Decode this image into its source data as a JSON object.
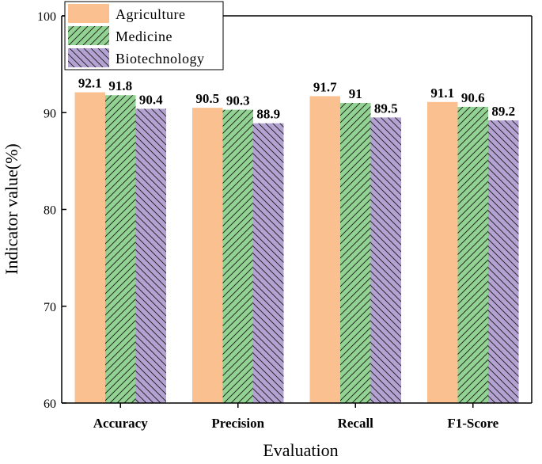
{
  "chart_data": {
    "type": "bar",
    "title": "",
    "xlabel": "Evaluation",
    "ylabel": "Indicator value(%)",
    "ylim": [
      60,
      100
    ],
    "yticks": [
      "60",
      "70",
      "80",
      "90",
      "100"
    ],
    "categories": [
      "Accuracy",
      "Precision",
      "Recall",
      "F1-Score"
    ],
    "series": [
      {
        "name": "Agriculture",
        "values": [
          92.1,
          90.5,
          91.7,
          91.1
        ],
        "labels": [
          "92.1",
          "90.5",
          "91.7",
          "91.1"
        ],
        "color": "#FAC090",
        "pattern": "none"
      },
      {
        "name": "Medicine",
        "values": [
          91.8,
          90.3,
          91,
          90.6
        ],
        "labels": [
          "91.8",
          "90.3",
          "91",
          "90.6"
        ],
        "color": "#92D292",
        "pattern": "diagonal-forward"
      },
      {
        "name": "Biotechnology",
        "values": [
          90.4,
          88.9,
          89.5,
          89.2
        ],
        "labels": [
          "90.4",
          "88.9",
          "89.5",
          "89.2"
        ],
        "color": "#B4A3D2",
        "pattern": "diagonal-backward"
      }
    ],
    "legend_position": "top-left",
    "grid": false
  }
}
